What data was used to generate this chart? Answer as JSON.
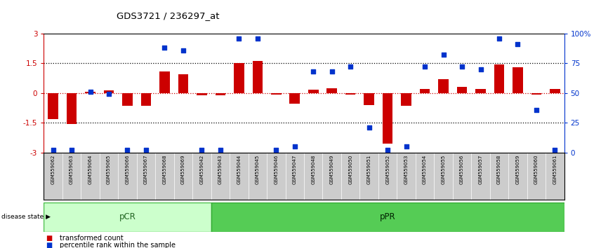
{
  "title": "GDS3721 / 236297_at",
  "samples": [
    "GSM559062",
    "GSM559063",
    "GSM559064",
    "GSM559065",
    "GSM559066",
    "GSM559067",
    "GSM559068",
    "GSM559069",
    "GSM559042",
    "GSM559043",
    "GSM559044",
    "GSM559045",
    "GSM559046",
    "GSM559047",
    "GSM559048",
    "GSM559049",
    "GSM559050",
    "GSM559051",
    "GSM559052",
    "GSM559053",
    "GSM559054",
    "GSM559055",
    "GSM559056",
    "GSM559057",
    "GSM559058",
    "GSM559059",
    "GSM559060",
    "GSM559061"
  ],
  "bar_values": [
    -1.3,
    -1.55,
    0.07,
    0.12,
    -0.65,
    -0.65,
    1.1,
    0.95,
    -0.12,
    -0.12,
    1.52,
    1.6,
    -0.08,
    -0.55,
    0.18,
    0.25,
    -0.08,
    -0.6,
    -2.55,
    -0.65,
    0.22,
    0.7,
    0.3,
    0.2,
    1.45,
    1.3,
    -0.08,
    0.2
  ],
  "dot_values": [
    2,
    2,
    51,
    49,
    2,
    2,
    88,
    86,
    2,
    2,
    96,
    96,
    2,
    5,
    68,
    68,
    72,
    21,
    2,
    5,
    72,
    82,
    72,
    70,
    96,
    91,
    36,
    2
  ],
  "pcr_count": 9,
  "bar_color": "#cc0000",
  "dot_color": "#0033cc",
  "bar_width": 0.55,
  "ylim": [
    -3,
    3
  ],
  "y2lim": [
    0,
    100
  ],
  "dotted_lines_black": [
    1.5,
    -1.5
  ],
  "dotted_line_red": 0.0,
  "pcr_color_light": "#ccffcc",
  "ppr_color": "#55cc55",
  "sample_bg": "#cccccc",
  "legend_bar": "transformed count",
  "legend_dot": "percentile rank within the sample",
  "disease_state_label": "disease state",
  "pcr_label": "pCR",
  "ppr_label": "pPR"
}
